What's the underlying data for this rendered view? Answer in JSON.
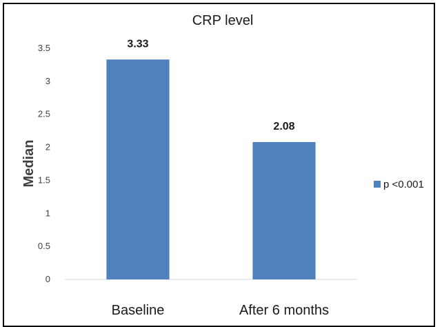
{
  "chart_data": {
    "type": "bar",
    "title": "CRP level",
    "ylabel": "Median",
    "xlabel": "",
    "categories": [
      "Baseline",
      "After 6 months"
    ],
    "series": [
      {
        "name": "p <0.001",
        "values": [
          3.33,
          2.08
        ],
        "data_labels": [
          "3.33",
          "2.08"
        ],
        "color": "#4F81BD"
      }
    ],
    "ylim": [
      0,
      3.5
    ],
    "yticks": [
      "0",
      "0.5",
      "1",
      "1.5",
      "2",
      "2.5",
      "3",
      "3.5"
    ],
    "grid": false,
    "legend_position": "right"
  }
}
